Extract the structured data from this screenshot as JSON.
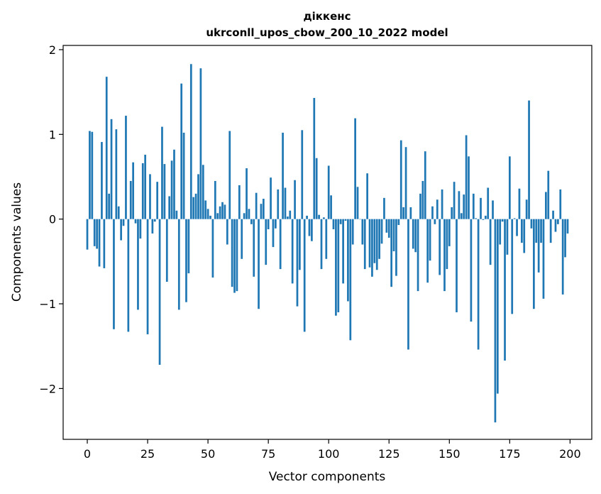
{
  "chart_data": {
    "type": "bar",
    "title_line1": "діккенс",
    "title_line2": "ukrconll_upos_cbow_200_10_2022 model",
    "xlabel": "Vector components",
    "ylabel": "Components values",
    "xlim": [
      -10,
      209
    ],
    "ylim": [
      -2.6,
      2.05
    ],
    "xticks": [
      0,
      25,
      50,
      75,
      100,
      125,
      150,
      175,
      200
    ],
    "xtick_labels": [
      "0",
      "25",
      "50",
      "75",
      "100",
      "125",
      "150",
      "175",
      "200"
    ],
    "yticks": [
      -2,
      -1,
      0,
      1,
      2
    ],
    "ytick_labels": [
      "−2",
      "−1",
      "0",
      "1",
      "2"
    ],
    "grid": false,
    "bar_color": "#1f77b4",
    "x": [
      0,
      1,
      2,
      3,
      4,
      5,
      6,
      7,
      8,
      9,
      10,
      11,
      12,
      13,
      14,
      15,
      16,
      17,
      18,
      19,
      20,
      21,
      22,
      23,
      24,
      25,
      26,
      27,
      28,
      29,
      30,
      31,
      32,
      33,
      34,
      35,
      36,
      37,
      38,
      39,
      40,
      41,
      42,
      43,
      44,
      45,
      46,
      47,
      48,
      49,
      50,
      51,
      52,
      53,
      54,
      55,
      56,
      57,
      58,
      59,
      60,
      61,
      62,
      63,
      64,
      65,
      66,
      67,
      68,
      69,
      70,
      71,
      72,
      73,
      74,
      75,
      76,
      77,
      78,
      79,
      80,
      81,
      82,
      83,
      84,
      85,
      86,
      87,
      88,
      89,
      90,
      91,
      92,
      93,
      94,
      95,
      96,
      97,
      98,
      99,
      100,
      101,
      102,
      103,
      104,
      105,
      106,
      107,
      108,
      109,
      110,
      111,
      112,
      113,
      114,
      115,
      116,
      117,
      118,
      119,
      120,
      121,
      122,
      123,
      124,
      125,
      126,
      127,
      128,
      129,
      130,
      131,
      132,
      133,
      134,
      135,
      136,
      137,
      138,
      139,
      140,
      141,
      142,
      143,
      144,
      145,
      146,
      147,
      148,
      149,
      150,
      151,
      152,
      153,
      154,
      155,
      156,
      157,
      158,
      159,
      160,
      161,
      162,
      163,
      164,
      165,
      166,
      167,
      168,
      169,
      170,
      171,
      172,
      173,
      174,
      175,
      176,
      177,
      178,
      179,
      180,
      181,
      182,
      183,
      184,
      185,
      186,
      187,
      188,
      189,
      190,
      191,
      192,
      193,
      194,
      195,
      196,
      197,
      198,
      199
    ],
    "values": [
      -0.36,
      1.04,
      1.03,
      -0.32,
      -0.35,
      -0.56,
      0.91,
      -0.58,
      1.68,
      0.3,
      1.18,
      -1.3,
      1.06,
      0.15,
      -0.25,
      -0.08,
      1.22,
      -1.33,
      0.45,
      0.67,
      -0.05,
      -1.07,
      -0.23,
      0.66,
      0.76,
      -1.36,
      0.53,
      -0.17,
      -0.03,
      0.44,
      -1.72,
      1.09,
      0.65,
      -0.74,
      0.27,
      0.69,
      0.82,
      0.1,
      -1.07,
      1.6,
      1.02,
      -0.98,
      -0.64,
      1.83,
      0.26,
      0.3,
      0.53,
      1.78,
      0.64,
      0.22,
      0.12,
      0.04,
      -0.69,
      0.45,
      0.07,
      0.15,
      0.2,
      0.17,
      -0.3,
      1.04,
      -0.8,
      -0.87,
      -0.85,
      0.4,
      -0.47,
      0.07,
      0.6,
      0.12,
      -0.06,
      -0.68,
      0.31,
      -1.06,
      0.18,
      0.24,
      -0.54,
      -0.12,
      0.49,
      -0.33,
      -0.11,
      0.35,
      -0.59,
      1.02,
      0.37,
      0.03,
      0.1,
      -0.76,
      0.46,
      -1.03,
      -0.6,
      1.05,
      -1.33,
      0.04,
      -0.2,
      -0.26,
      1.43,
      0.72,
      0.05,
      -0.59,
      0.02,
      -0.47,
      0.63,
      0.28,
      -0.12,
      -1.14,
      -1.1,
      -0.06,
      -0.76,
      -0.02,
      -0.97,
      -1.43,
      -0.3,
      1.19,
      0.38,
      0.0,
      -0.3,
      -0.59,
      0.54,
      -0.57,
      -0.68,
      -0.52,
      -0.6,
      -0.47,
      -0.29,
      0.25,
      -0.16,
      -0.22,
      -0.8,
      -0.38,
      -0.67,
      -0.07,
      0.93,
      0.14,
      0.85,
      -1.54,
      0.14,
      -0.35,
      -0.39,
      -0.85,
      0.3,
      0.45,
      0.8,
      -0.75,
      -0.49,
      0.15,
      -0.06,
      0.23,
      -0.66,
      0.35,
      -0.85,
      -0.59,
      -0.32,
      0.14,
      0.44,
      -1.1,
      0.33,
      0.07,
      0.29,
      0.99,
      0.74,
      -1.21,
      0.3,
      0.01,
      -1.54,
      0.25,
      -0.01,
      0.04,
      0.37,
      -0.54,
      0.22,
      -2.4,
      -2.06,
      -0.3,
      -0.03,
      -1.67,
      -0.42,
      0.74,
      -1.12,
      0.01,
      -0.2,
      0.36,
      -0.28,
      -0.4,
      0.23,
      1.4,
      -0.11,
      -1.06,
      -0.28,
      -0.63,
      -0.28,
      -0.94,
      0.32,
      0.57,
      -0.28,
      0.1,
      -0.15,
      -0.06,
      0.35,
      -0.89,
      -0.45,
      -0.17
    ]
  }
}
